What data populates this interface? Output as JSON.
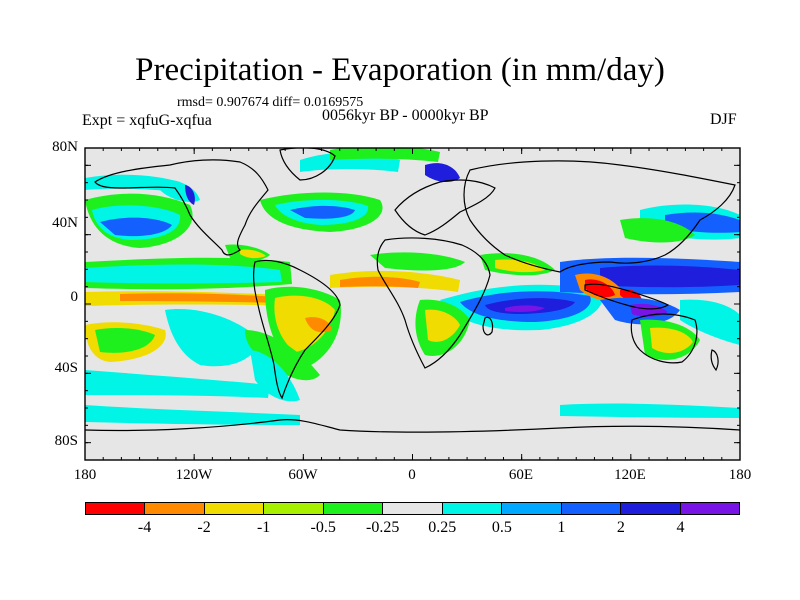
{
  "title": "Precipitation - Evaporation (in mm/day)",
  "stats": "rmsd= 0.907674 diff= 0.0169575",
  "experiment": "Expt = xqfuG-xqfua",
  "period": "0056kyr BP - 0000kyr BP",
  "season": "DJF",
  "y_axis_labels": [
    "80N",
    "40N",
    "0",
    "40S",
    "80S"
  ],
  "x_axis_labels": [
    "180",
    "120W",
    "60W",
    "0",
    "60E",
    "120E",
    "180"
  ],
  "legend": {
    "colors": [
      "#ff0000",
      "#ff8a00",
      "#f0dc00",
      "#a6f000",
      "#1ef01e",
      "#e6e6e6",
      "#00f5e6",
      "#00a8ff",
      "#1460ff",
      "#1e1edc",
      "#7814e6"
    ],
    "labels": [
      "-4",
      "-2",
      "-1",
      "-0.5",
      "-0.25",
      "0.25",
      "0.5",
      "1",
      "2",
      "4"
    ]
  },
  "colors": {
    "ocean_background": "#e6e6e6",
    "coastline": "#000000"
  }
}
